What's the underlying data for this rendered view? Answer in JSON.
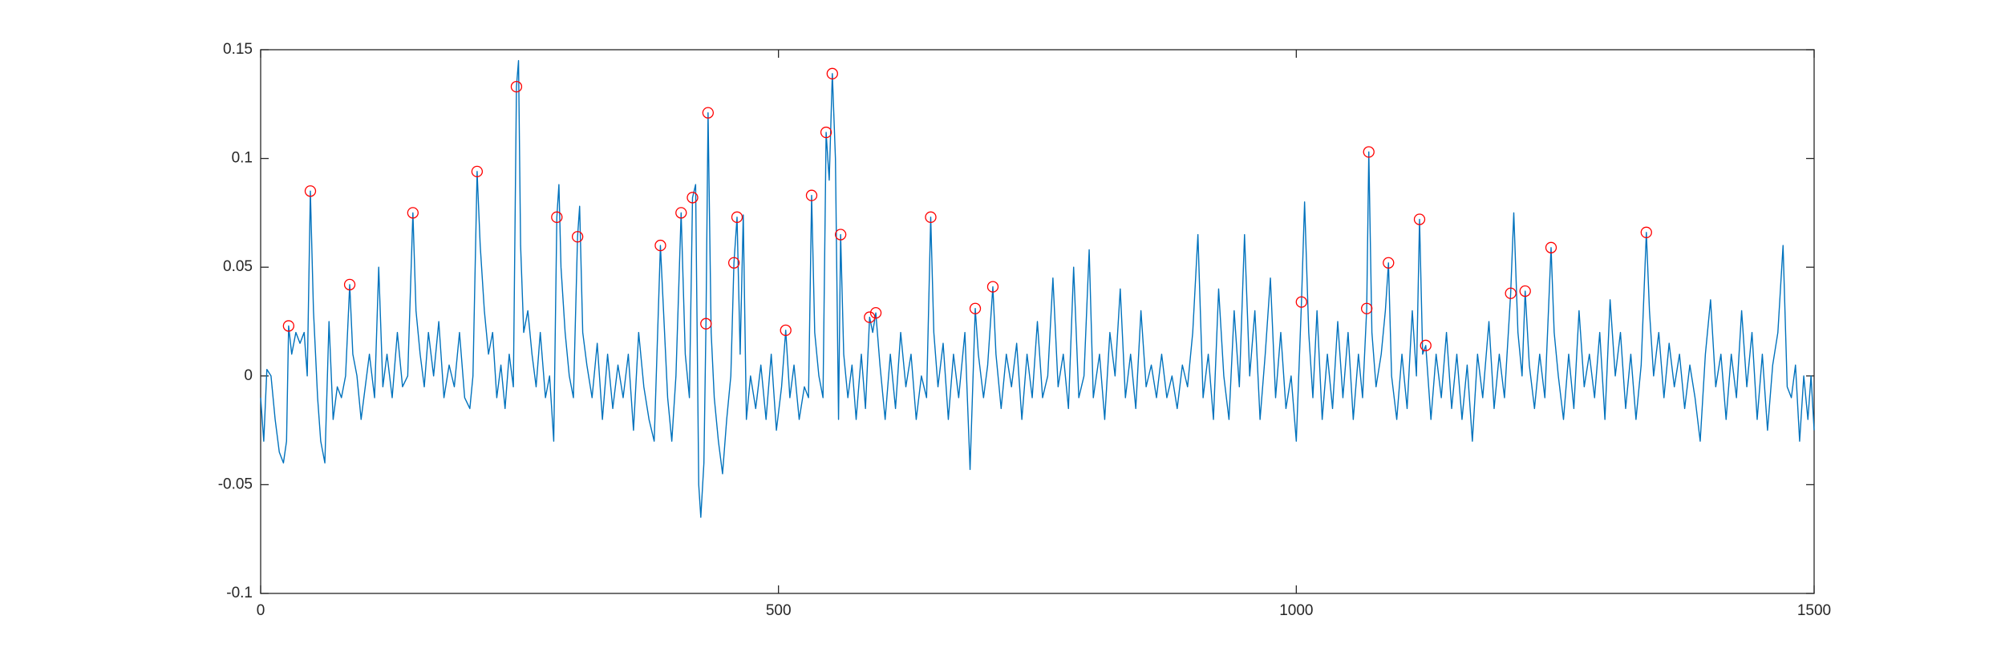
{
  "chart_data": {
    "type": "line",
    "x": [
      0,
      3,
      6,
      10,
      14,
      18,
      22,
      25,
      27,
      30,
      34,
      38,
      42,
      45,
      48,
      51,
      55,
      58,
      62,
      66,
      70,
      74,
      78,
      82,
      86,
      89,
      93,
      97,
      101,
      105,
      110,
      114,
      118,
      122,
      127,
      132,
      137,
      142,
      147,
      150,
      154,
      158,
      162,
      167,
      172,
      177,
      182,
      187,
      192,
      197,
      202,
      205,
      209,
      212,
      216,
      220,
      224,
      228,
      232,
      236,
      240,
      244,
      247,
      249,
      251,
      254,
      258,
      262,
      266,
      270,
      275,
      279,
      283,
      286,
      288,
      290,
      294,
      298,
      302,
      306,
      308,
      311,
      315,
      320,
      325,
      330,
      335,
      340,
      345,
      350,
      355,
      360,
      365,
      370,
      375,
      380,
      386,
      389,
      393,
      397,
      401,
      406,
      410,
      414,
      417,
      420,
      423,
      425,
      428,
      430,
      432,
      435,
      438,
      442,
      446,
      450,
      454,
      457,
      460,
      463,
      466,
      469,
      473,
      478,
      483,
      488,
      493,
      498,
      503,
      507,
      511,
      515,
      520,
      525,
      529,
      532,
      535,
      539,
      543,
      546,
      549,
      552,
      555,
      558,
      560,
      563,
      567,
      571,
      575,
      580,
      584,
      588,
      591,
      594,
      598,
      603,
      608,
      613,
      618,
      623,
      628,
      633,
      638,
      643,
      647,
      650,
      654,
      659,
      664,
      669,
      674,
      680,
      685,
      690,
      693,
      698,
      702,
      707,
      710,
      715,
      720,
      725,
      730,
      735,
      740,
      745,
      750,
      755,
      760,
      765,
      770,
      775,
      780,
      785,
      790,
      795,
      800,
      804,
      810,
      815,
      820,
      825,
      830,
      835,
      840,
      845,
      850,
      855,
      860,
      865,
      870,
      875,
      880,
      885,
      890,
      895,
      900,
      905,
      910,
      915,
      920,
      925,
      930,
      935,
      940,
      945,
      950,
      955,
      960,
      965,
      970,
      975,
      980,
      985,
      990,
      995,
      1000,
      1005,
      1008,
      1012,
      1016,
      1020,
      1025,
      1030,
      1035,
      1040,
      1045,
      1050,
      1055,
      1060,
      1064,
      1068,
      1070,
      1073,
      1077,
      1082,
      1086,
      1089,
      1092,
      1097,
      1102,
      1107,
      1112,
      1116,
      1119,
      1122,
      1125,
      1130,
      1135,
      1140,
      1145,
      1150,
      1155,
      1160,
      1165,
      1170,
      1175,
      1180,
      1186,
      1191,
      1196,
      1201,
      1207,
      1210,
      1214,
      1218,
      1221,
      1225,
      1230,
      1235,
      1240,
      1246,
      1249,
      1253,
      1258,
      1263,
      1268,
      1273,
      1278,
      1283,
      1288,
      1293,
      1298,
      1303,
      1308,
      1313,
      1318,
      1323,
      1328,
      1333,
      1338,
      1341,
      1345,
      1350,
      1355,
      1360,
      1365,
      1370,
      1375,
      1380,
      1385,
      1390,
      1395,
      1400,
      1405,
      1410,
      1415,
      1420,
      1425,
      1430,
      1435,
      1440,
      1445,
      1450,
      1455,
      1460,
      1465,
      1470,
      1474,
      1478,
      1482,
      1486,
      1490,
      1494,
      1497,
      1500
    ],
    "values": [
      -0.01,
      -0.03,
      0.003,
      0,
      -0.02,
      -0.035,
      -0.04,
      -0.03,
      0.023,
      0.01,
      0.02,
      0.015,
      0.02,
      0,
      0.085,
      0.03,
      -0.01,
      -0.03,
      -0.04,
      0.025,
      -0.02,
      -0.005,
      -0.01,
      0,
      0.042,
      0.01,
      0,
      -0.02,
      -0.005,
      0.01,
      -0.01,
      0.05,
      -0.005,
      0.01,
      -0.01,
      0.02,
      -0.005,
      0,
      0.075,
      0.03,
      0.01,
      -0.005,
      0.02,
      0,
      0.025,
      -0.01,
      0.005,
      -0.005,
      0.02,
      -0.01,
      -0.015,
      0,
      0.094,
      0.06,
      0.03,
      0.01,
      0.02,
      -0.01,
      0.005,
      -0.015,
      0.01,
      -0.005,
      0.133,
      0.145,
      0.06,
      0.02,
      0.03,
      0.01,
      -0.005,
      0.02,
      -0.01,
      0,
      -0.03,
      0.073,
      0.088,
      0.05,
      0.02,
      0,
      -0.01,
      0.064,
      0.078,
      0.02,
      0.005,
      -0.01,
      0.015,
      -0.02,
      0.01,
      -0.015,
      0.005,
      -0.01,
      0.01,
      -0.025,
      0.02,
      -0.005,
      -0.02,
      -0.03,
      0.06,
      0.03,
      -0.01,
      -0.03,
      0,
      0.075,
      0.01,
      -0.01,
      0.082,
      0.088,
      -0.05,
      -0.065,
      -0.04,
      0.024,
      0.121,
      0.02,
      -0.01,
      -0.03,
      -0.045,
      -0.02,
      0,
      0.052,
      0.073,
      0.01,
      0.074,
      -0.02,
      0,
      -0.015,
      0.005,
      -0.02,
      0.01,
      -0.025,
      -0.005,
      0.021,
      -0.01,
      0.005,
      -0.02,
      -0.005,
      -0.01,
      0.083,
      0.02,
      0,
      -0.01,
      0.112,
      0.09,
      0.139,
      0.1,
      -0.02,
      0.065,
      0.01,
      -0.01,
      0.005,
      -0.02,
      0.01,
      -0.015,
      0.027,
      0.02,
      0.029,
      0.005,
      -0.02,
      0.01,
      -0.015,
      0.02,
      -0.005,
      0.01,
      -0.02,
      0,
      -0.01,
      0.073,
      0.02,
      -0.005,
      0.015,
      -0.02,
      0.01,
      -0.01,
      0.02,
      -0.043,
      0.031,
      0.01,
      -0.01,
      0.005,
      0.041,
      0.01,
      -0.015,
      0.01,
      -0.005,
      0.015,
      -0.02,
      0.01,
      -0.01,
      0.025,
      -0.01,
      0,
      0.045,
      -0.005,
      0.01,
      -0.015,
      0.05,
      -0.01,
      0,
      0.058,
      -0.01,
      0.01,
      -0.02,
      0.02,
      0,
      0.04,
      -0.01,
      0.01,
      -0.015,
      0.03,
      -0.005,
      0.005,
      -0.01,
      0.01,
      -0.01,
      0,
      -0.015,
      0.005,
      -0.005,
      0.02,
      0.065,
      -0.01,
      0.01,
      -0.02,
      0.04,
      0,
      -0.02,
      0.03,
      -0.005,
      0.065,
      0,
      0.03,
      -0.02,
      0.01,
      0.045,
      -0.01,
      0.02,
      -0.015,
      0,
      -0.03,
      0.034,
      0.08,
      0.02,
      -0.01,
      0.03,
      -0.02,
      0.01,
      -0.015,
      0.025,
      -0.01,
      0.02,
      -0.02,
      0.01,
      -0.01,
      0.031,
      0.103,
      0.02,
      -0.005,
      0.01,
      0.03,
      0.052,
      0,
      -0.02,
      0.01,
      -0.015,
      0.03,
      0,
      0.072,
      0.01,
      0.014,
      -0.02,
      0.01,
      -0.01,
      0.02,
      -0.015,
      0.01,
      -0.02,
      0.005,
      -0.03,
      0.01,
      -0.01,
      0.025,
      -0.015,
      0.01,
      -0.01,
      0.038,
      0.075,
      0.02,
      0,
      0.039,
      0.005,
      -0.015,
      0.01,
      -0.01,
      0.059,
      0.02,
      0,
      -0.02,
      0.01,
      -0.015,
      0.03,
      -0.005,
      0.01,
      -0.01,
      0.02,
      -0.02,
      0.035,
      0,
      0.02,
      -0.015,
      0.01,
      -0.02,
      0.005,
      0.066,
      0.03,
      0,
      0.02,
      -0.01,
      0.015,
      -0.005,
      0.01,
      -0.015,
      0.005,
      -0.01,
      -0.03,
      0.01,
      0.035,
      -0.005,
      0.01,
      -0.02,
      0.01,
      -0.01,
      0.03,
      -0.005,
      0.02,
      -0.02,
      0.01,
      -0.025,
      0.005,
      0.02,
      0.06,
      -0.005,
      -0.01,
      0.005,
      -0.03,
      0,
      -0.02,
      0,
      -0.025
    ],
    "color": "#0072bd",
    "peaks": {
      "x": [
        27,
        48,
        86,
        147,
        209,
        247,
        286,
        306,
        386,
        406,
        417,
        430,
        432,
        457,
        460,
        507,
        532,
        546,
        552,
        560,
        588,
        594,
        647,
        690,
        707,
        1005,
        1068,
        1070,
        1089,
        1119,
        1125,
        1207,
        1221,
        1246,
        1338
      ],
      "values": [
        0.023,
        0.085,
        0.042,
        0.075,
        0.094,
        0.133,
        0.073,
        0.064,
        0.06,
        0.075,
        0.082,
        0.024,
        0.121,
        0.052,
        0.073,
        0.021,
        0.083,
        0.112,
        0.139,
        0.065,
        0.027,
        0.029,
        0.073,
        0.031,
        0.041,
        0.034,
        0.031,
        0.103,
        0.052,
        0.072,
        0.014,
        0.038,
        0.039,
        0.059,
        0.066
      ],
      "color": "#ff0000"
    },
    "xlim": [
      0,
      1500
    ],
    "xticks": [
      0,
      500,
      1000,
      1500
    ],
    "ylim": [
      -0.1,
      0.15
    ],
    "yticks": [
      -0.1,
      -0.05,
      0,
      0.05,
      0.1,
      0.15
    ]
  }
}
